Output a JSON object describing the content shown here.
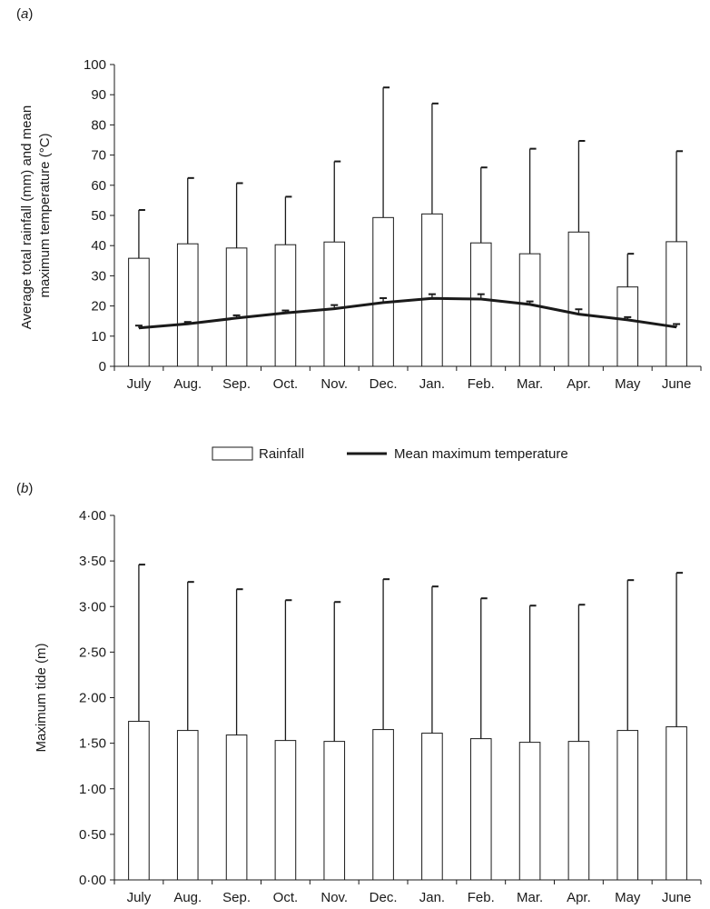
{
  "figure": {
    "panel_a_label": {
      "open": "(",
      "letter": "a",
      "close": ")"
    },
    "panel_b_label": {
      "open": "(",
      "letter": "b",
      "close": ")"
    }
  },
  "chart_data": [
    {
      "panel": "a",
      "type": "bar",
      "categories": [
        "July",
        "Aug.",
        "Sep.",
        "Oct.",
        "Nov.",
        "Dec.",
        "Jan.",
        "Feb.",
        "Mar.",
        "Apr.",
        "May",
        "June"
      ],
      "series": [
        {
          "name": "Rainfall",
          "kind": "bar",
          "values": [
            35.8,
            40.6,
            39.2,
            40.3,
            41.2,
            49.3,
            50.5,
            40.9,
            37.3,
            44.5,
            26.3,
            41.3
          ],
          "error_upper": [
            51.8,
            62.4,
            60.7,
            56.2,
            67.9,
            92.4,
            87.1,
            65.9,
            72.1,
            74.7,
            37.3,
            71.3
          ]
        },
        {
          "name": "Mean maximum temperature",
          "kind": "line",
          "values": [
            12.7,
            14.1,
            16.0,
            17.7,
            19.1,
            21.1,
            22.5,
            22.3,
            20.5,
            17.3,
            15.4,
            13.0
          ],
          "error_upper": [
            13.5,
            14.7,
            16.9,
            18.5,
            20.3,
            22.6,
            23.9,
            23.9,
            21.5,
            18.9,
            16.3,
            14.0
          ]
        }
      ],
      "ylabel_line1": "Average total rainfall (mm) and mean",
      "ylabel_line2": "maximum temperature (°C)",
      "xlabel": "",
      "ylim": [
        0,
        100
      ],
      "yticks": [
        "0",
        "10",
        "20",
        "30",
        "40",
        "50",
        "60",
        "70",
        "80",
        "90",
        "100"
      ],
      "legend": {
        "position": "bottom",
        "bar_label": "Rainfall",
        "line_label": "Mean maximum temperature"
      },
      "colors": {
        "bar_fill": "#ffffff",
        "stroke": "#1a1a1a"
      },
      "grid": false
    },
    {
      "panel": "b",
      "type": "bar",
      "categories": [
        "July",
        "Aug.",
        "Sep.",
        "Oct.",
        "Nov.",
        "Dec.",
        "Jan.",
        "Feb.",
        "Mar.",
        "Apr.",
        "May",
        "June"
      ],
      "series": [
        {
          "kind": "bar",
          "values": [
            1.74,
            1.64,
            1.59,
            1.53,
            1.52,
            1.65,
            1.61,
            1.55,
            1.51,
            1.52,
            1.64,
            1.68
          ],
          "error_upper": [
            3.46,
            3.27,
            3.19,
            3.07,
            3.05,
            3.3,
            3.22,
            3.09,
            3.01,
            3.02,
            3.29,
            3.37
          ]
        }
      ],
      "ylabel": "Maximum tide (m)",
      "xlabel": "",
      "ylim": [
        0,
        4
      ],
      "yticks": [
        "0·00",
        "0·50",
        "1·00",
        "1·50",
        "2·00",
        "2·50",
        "3·00",
        "3·50",
        "4·00"
      ],
      "colors": {
        "bar_fill": "#ffffff",
        "stroke": "#1a1a1a"
      },
      "grid": false
    }
  ]
}
